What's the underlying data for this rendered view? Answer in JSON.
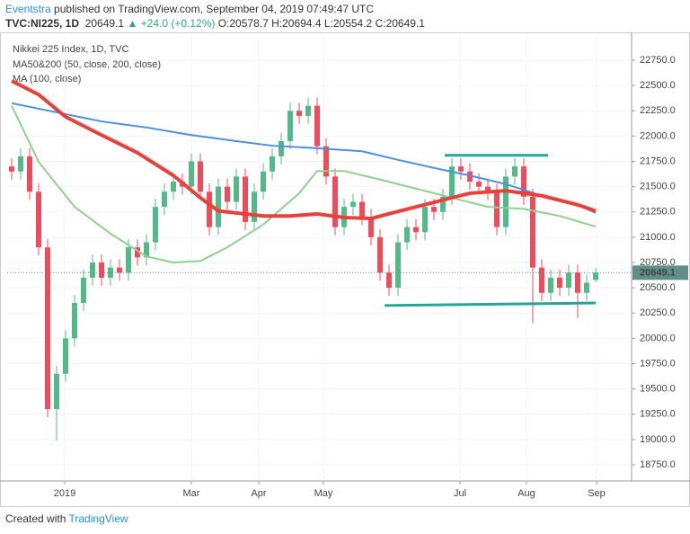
{
  "header": {
    "author": "Eventstra",
    "published": "published on TradingView.com, September 04, 2019 07:49:47 UTC",
    "symbol": "TVC:NI225, 1D",
    "last": "20649.1",
    "change": "▲ +24.0 (+0.12%)",
    "open": "O:20578.7",
    "high": "H:20694.4",
    "low": "L:20554.2",
    "close": "C:20649.1"
  },
  "footer": {
    "text": "Created with",
    "brand": "TradingView"
  },
  "chart_data": {
    "type": "candlestick",
    "legend": [
      "Nikkei 225 Index, 1D, TVC",
      "MA50&200 (50, close, 200, close)",
      "MA (100, close)"
    ],
    "colors": {
      "up": "#53b987",
      "down": "#eb4d5c"
    },
    "open": [
      21700,
      21650,
      21800,
      21450,
      20900,
      19300,
      19650,
      20000,
      20350,
      20600,
      20750,
      20600,
      20700,
      20650,
      20900,
      20800,
      20950,
      21300,
      21450,
      21550,
      21500,
      21750,
      21450,
      21100,
      21500,
      21350,
      21600,
      21150,
      21450,
      21650,
      21800,
      21950,
      22250,
      22200,
      22300,
      21900,
      21600,
      21100,
      21300,
      21350,
      21200,
      21000,
      20650,
      20500,
      20950,
      21100,
      21050,
      21300,
      21250,
      21400,
      21700,
      21650,
      21550,
      21500,
      21450,
      21100,
      21600,
      21700,
      21400,
      20700,
      20450,
      20600,
      20500,
      20650,
      20450,
      20578.7
    ],
    "high": [
      21780,
      21880,
      21880,
      21530,
      20980,
      19730,
      20080,
      20430,
      20680,
      20830,
      20830,
      20780,
      20780,
      20980,
      20980,
      21030,
      21380,
      21530,
      21630,
      21630,
      21830,
      21830,
      21530,
      21580,
      21580,
      21680,
      21680,
      21530,
      21730,
      21880,
      22030,
      22330,
      22330,
      22380,
      22380,
      21980,
      21680,
      21380,
      21430,
      21430,
      21280,
      21080,
      20730,
      21030,
      21180,
      21180,
      21380,
      21380,
      21480,
      21780,
      21780,
      21730,
      21630,
      21580,
      21530,
      21680,
      21780,
      21780,
      21480,
      20780,
      20680,
      20680,
      20730,
      20730,
      20630,
      20694.4
    ],
    "low": [
      21570,
      21570,
      21370,
      20820,
      19220,
      18990,
      19570,
      19920,
      20270,
      20520,
      20520,
      20520,
      20570,
      20570,
      20720,
      20720,
      20870,
      21220,
      21370,
      21420,
      21420,
      21370,
      21020,
      21020,
      21270,
      21270,
      21070,
      21070,
      21370,
      21570,
      21720,
      21870,
      22120,
      22120,
      21820,
      21520,
      21020,
      21020,
      21220,
      21120,
      20920,
      20570,
      20420,
      20420,
      20870,
      20970,
      20970,
      21170,
      21170,
      21320,
      21570,
      21470,
      21420,
      21370,
      21020,
      21020,
      21520,
      21320,
      20150,
      20370,
      20370,
      20420,
      20420,
      20200,
      20370,
      20554.2
    ],
    "close": [
      21650,
      21800,
      21450,
      20900,
      19300,
      19650,
      20000,
      20350,
      20600,
      20750,
      20600,
      20700,
      20650,
      20900,
      20800,
      20950,
      21300,
      21450,
      21550,
      21500,
      21750,
      21450,
      21100,
      21500,
      21350,
      21600,
      21150,
      21450,
      21650,
      21800,
      21950,
      22250,
      22200,
      22300,
      21900,
      21600,
      21100,
      21300,
      21350,
      21200,
      21000,
      20650,
      20500,
      20950,
      21100,
      21050,
      21300,
      21250,
      21400,
      21700,
      21650,
      21550,
      21500,
      21450,
      21100,
      21600,
      21700,
      21400,
      20700,
      20450,
      20600,
      20500,
      20650,
      20450,
      20550,
      20649.1
    ],
    "series": [
      {
        "color": "#8fd18f",
        "width": 2,
        "x": [
          0,
          3,
          7,
          11,
          15,
          18,
          21,
          24,
          28,
          32,
          34,
          37,
          41,
          45,
          49,
          53,
          57,
          61,
          65
        ],
        "values": [
          22300,
          21745,
          21300,
          21035,
          20810,
          20750,
          20765,
          20900,
          21125,
          21435,
          21655,
          21655,
          21570,
          21480,
          21390,
          21300,
          21280,
          21210,
          21105
        ]
      },
      {
        "color": "#4a90e2",
        "width": 2,
        "x": [
          0,
          5,
          10,
          15,
          20,
          25,
          29,
          34,
          39,
          43,
          47,
          51,
          55,
          59,
          63,
          65
        ],
        "values": [
          22325,
          22235,
          22145,
          22085,
          22010,
          21950,
          21905,
          21880,
          21850,
          21765,
          21685,
          21610,
          21525,
          21410,
          21320,
          21240
        ]
      },
      {
        "color": "#e8403a",
        "width": 4,
        "x": [
          0,
          3,
          6,
          10,
          14,
          18,
          21,
          23,
          28,
          31,
          34,
          37,
          40,
          43,
          47,
          51,
          55,
          59,
          63,
          65
        ],
        "values": [
          22545,
          22410,
          22190,
          22010,
          21835,
          21610,
          21390,
          21260,
          21210,
          21210,
          21230,
          21195,
          21185,
          21255,
          21345,
          21435,
          21460,
          21410,
          21320,
          21260
        ]
      }
    ],
    "trendlines": [
      {
        "color": "#26a69a",
        "x": [
          48.2,
          59.7
        ],
        "values": [
          21810,
          21810
        ]
      },
      {
        "color": "#26a69a",
        "x": [
          41.5,
          65
        ],
        "values": [
          20325,
          20350
        ]
      }
    ],
    "last_price": 20649.1,
    "last_price_color": "#5f8f88",
    "xlim": [
      -0.5,
      69
    ],
    "ylim": [
      18590,
      22990
    ],
    "xticks": [
      {
        "value": 5.9,
        "label": "2019"
      },
      {
        "value": 20,
        "label": "Mar"
      },
      {
        "value": 27.5,
        "label": "Apr"
      },
      {
        "value": 34.7,
        "label": "May"
      },
      {
        "value": 49.9,
        "label": "Jul"
      },
      {
        "value": 57.3,
        "label": "Aug"
      },
      {
        "value": 65.1,
        "label": "Sep"
      }
    ],
    "yticks": [
      {
        "value": 18750,
        "label": "18750.0"
      },
      {
        "value": 19000,
        "label": "19000.0"
      },
      {
        "value": 19250,
        "label": "19250.0"
      },
      {
        "value": 19500,
        "label": "19500.0"
      },
      {
        "value": 19750,
        "label": "19750.0"
      },
      {
        "value": 20000,
        "label": "20000.0"
      },
      {
        "value": 20250,
        "label": "20250.0"
      },
      {
        "value": 20500,
        "label": "20500.0"
      },
      {
        "value": 20750,
        "label": "20750.0"
      },
      {
        "value": 21000,
        "label": "21000.0"
      },
      {
        "value": 21250,
        "label": "21250.0"
      },
      {
        "value": 21500,
        "label": "21500.0"
      },
      {
        "value": 21750,
        "label": "21750.0"
      },
      {
        "value": 22000,
        "label": "22000.0"
      },
      {
        "value": 22250,
        "label": "22250.0"
      },
      {
        "value": 22500,
        "label": "22500.0"
      },
      {
        "value": 22750,
        "label": "22750.0"
      }
    ],
    "grid": true
  }
}
